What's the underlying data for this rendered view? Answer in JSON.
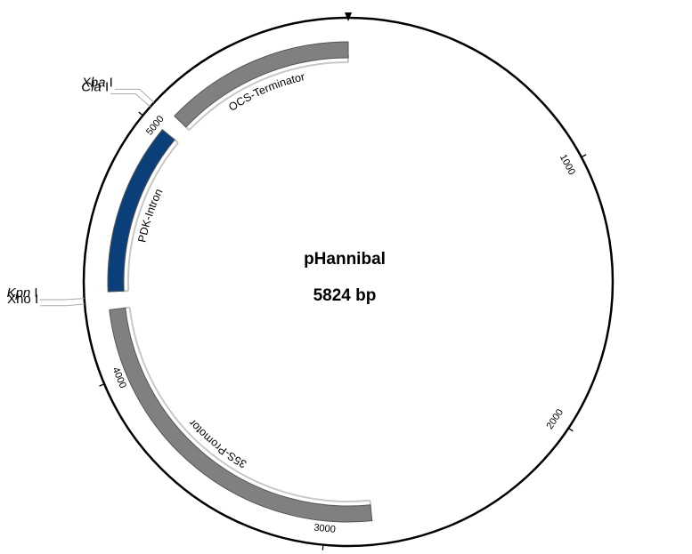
{
  "plasmid": {
    "name": "pHannibal",
    "size_text": "5824 bp",
    "length": 5824
  },
  "ticks": [
    {
      "pos": 1000,
      "label": "1000"
    },
    {
      "pos": 2000,
      "label": "2000"
    },
    {
      "pos": 3000,
      "label": "3000"
    },
    {
      "pos": 4000,
      "label": "4000"
    },
    {
      "pos": 5000,
      "label": "5000"
    }
  ],
  "features": [
    {
      "name": "35S-Promotor",
      "start": 2820,
      "end": 4260,
      "color": "#808080"
    },
    {
      "name": "PDK-Intron",
      "start": 4330,
      "end": 5005,
      "color": "#0b3f7a"
    },
    {
      "name": "OCS-Terminator",
      "start": 5075,
      "end": 5824,
      "color": "#808080"
    }
  ],
  "sites": [
    {
      "name": "Xba I",
      "prefix": "Xba",
      "suffix": " I",
      "italic_prefix": true,
      "pos": 5060
    },
    {
      "name": "Cla I",
      "prefix": "Cla",
      "suffix": " I",
      "italic_prefix": true,
      "pos": 5040
    },
    {
      "name": "Kpn I",
      "prefix": "Kpn",
      "suffix": " I",
      "italic_prefix": true,
      "pos": 4310
    },
    {
      "name": "Xho I",
      "prefix": "Xho",
      "suffix": " I",
      "italic_prefix": false,
      "pos": 4290
    }
  ],
  "colors": {
    "backbone": "#000000",
    "inner_arc": "#c8c8c8",
    "gray_feature": "#808080",
    "blue_feature": "#0b3f7a"
  }
}
